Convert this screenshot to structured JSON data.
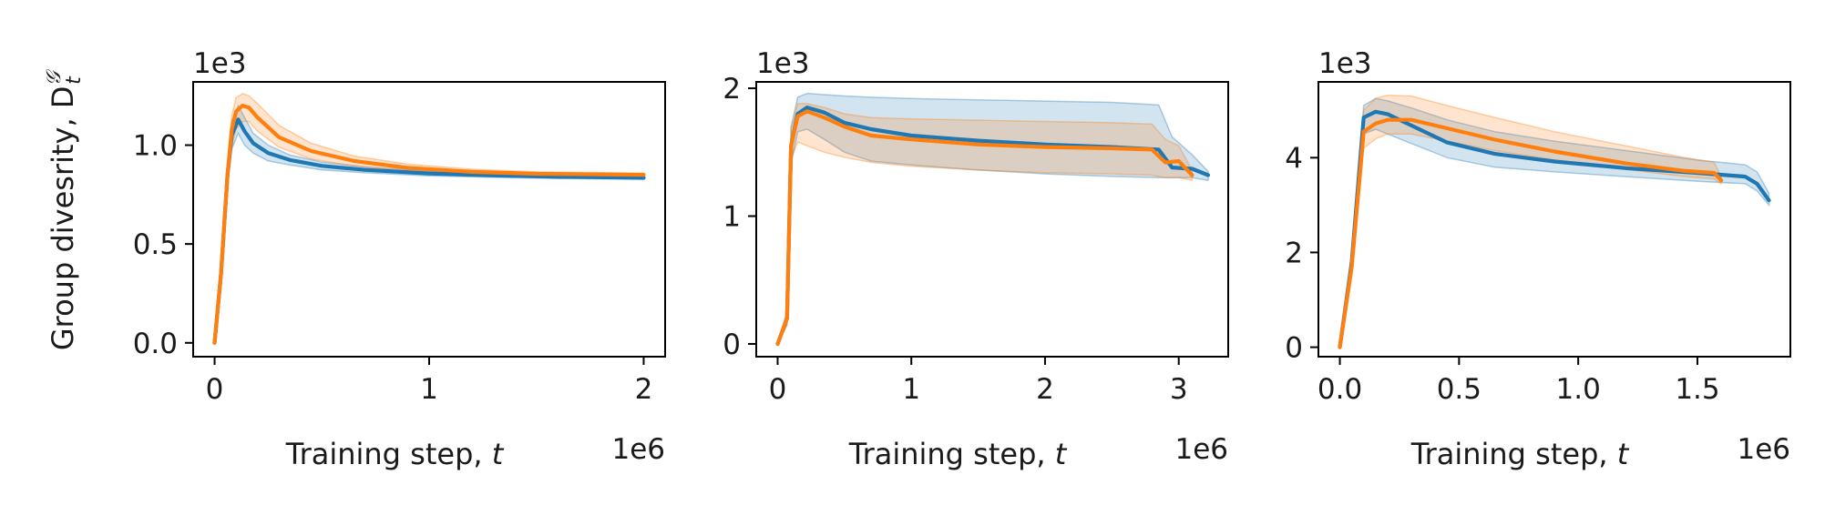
{
  "figure": {
    "ylabel": "Group divesrity, D",
    "ylabel_sup": "𝒢",
    "ylabel_sub": "t"
  },
  "colors": {
    "series_a": "#1f77b4",
    "series_b": "#ff7f0e"
  },
  "chart_data": [
    {
      "type": "line",
      "xlabel": "Training step, t",
      "x_multiplier": "1e6",
      "y_multiplier": "1e3",
      "xlim": [
        -0.1,
        2.1
      ],
      "ylim": [
        -0.07,
        1.32
      ],
      "xticks": [
        0,
        1,
        2
      ],
      "xtick_labels": [
        "0",
        "1",
        "2"
      ],
      "yticks": [
        0.0,
        0.5,
        1.0
      ],
      "ytick_labels": [
        "0.0",
        "0.5",
        "1.0"
      ],
      "grid": false,
      "series": [
        {
          "color": "#1f77b4",
          "x": [
            0,
            0.03,
            0.06,
            0.08,
            0.11,
            0.14,
            0.18,
            0.25,
            0.35,
            0.5,
            0.7,
            1.0,
            1.3,
            1.6,
            2.0
          ],
          "y": [
            0,
            0.35,
            0.85,
            1.05,
            1.13,
            1.07,
            1.01,
            0.96,
            0.925,
            0.895,
            0.875,
            0.857,
            0.847,
            0.84,
            0.835
          ],
          "lower": [
            0,
            0.3,
            0.8,
            0.98,
            1.06,
            1.0,
            0.96,
            0.92,
            0.9,
            0.875,
            0.86,
            0.845,
            0.837,
            0.831,
            0.827
          ],
          "upper": [
            0,
            0.4,
            0.9,
            1.12,
            1.2,
            1.14,
            1.06,
            1.0,
            0.95,
            0.915,
            0.89,
            0.869,
            0.857,
            0.849,
            0.843
          ]
        },
        {
          "color": "#ff7f0e",
          "x": [
            0,
            0.03,
            0.06,
            0.08,
            0.1,
            0.13,
            0.16,
            0.2,
            0.3,
            0.45,
            0.65,
            0.9,
            1.2,
            1.5,
            2.0
          ],
          "y": [
            0,
            0.35,
            0.85,
            1.08,
            1.17,
            1.2,
            1.19,
            1.14,
            1.04,
            0.97,
            0.92,
            0.885,
            0.865,
            0.855,
            0.85
          ],
          "lower": [
            0,
            0.3,
            0.8,
            1.0,
            1.08,
            1.12,
            1.12,
            1.07,
            0.99,
            0.93,
            0.895,
            0.866,
            0.852,
            0.845,
            0.841
          ],
          "upper": [
            0,
            0.4,
            0.9,
            1.15,
            1.24,
            1.26,
            1.25,
            1.21,
            1.1,
            1.01,
            0.945,
            0.904,
            0.878,
            0.865,
            0.859
          ]
        }
      ]
    },
    {
      "type": "line",
      "xlabel": "Training step, t",
      "x_multiplier": "1e6",
      "y_multiplier": "1e3",
      "xlim": [
        -0.16,
        3.37
      ],
      "ylim": [
        -0.1,
        2.05
      ],
      "xticks": [
        0,
        1,
        2,
        3
      ],
      "xtick_labels": [
        "0",
        "1",
        "2",
        "3"
      ],
      "yticks": [
        0,
        1,
        2
      ],
      "ytick_labels": [
        "0",
        "1",
        "2"
      ],
      "grid": false,
      "series": [
        {
          "color": "#1f77b4",
          "x": [
            0,
            0.07,
            0.1,
            0.15,
            0.22,
            0.35,
            0.5,
            0.7,
            1.0,
            1.5,
            2.0,
            2.5,
            2.85,
            2.95,
            3.1,
            3.22
          ],
          "y": [
            0,
            0.2,
            1.55,
            1.8,
            1.85,
            1.81,
            1.73,
            1.68,
            1.63,
            1.59,
            1.56,
            1.54,
            1.52,
            1.38,
            1.37,
            1.32
          ],
          "lower": [
            0,
            0.15,
            1.4,
            1.66,
            1.68,
            1.6,
            1.5,
            1.43,
            1.4,
            1.36,
            1.33,
            1.31,
            1.3,
            1.3,
            1.3,
            1.28
          ],
          "upper": [
            0,
            0.25,
            1.7,
            1.93,
            1.96,
            1.95,
            1.94,
            1.93,
            1.92,
            1.91,
            1.9,
            1.89,
            1.87,
            1.62,
            1.48,
            1.35
          ]
        },
        {
          "color": "#ff7f0e",
          "x": [
            0,
            0.07,
            0.1,
            0.15,
            0.22,
            0.35,
            0.5,
            0.7,
            1.0,
            1.5,
            2.0,
            2.5,
            2.8,
            2.9,
            3.0,
            3.1
          ],
          "y": [
            0,
            0.2,
            1.55,
            1.78,
            1.82,
            1.77,
            1.7,
            1.63,
            1.6,
            1.56,
            1.54,
            1.53,
            1.52,
            1.42,
            1.43,
            1.32
          ],
          "lower": [
            0,
            0.15,
            1.45,
            1.58,
            1.55,
            1.5,
            1.46,
            1.42,
            1.39,
            1.36,
            1.34,
            1.33,
            1.32,
            1.3,
            1.3,
            1.28
          ],
          "upper": [
            0,
            0.25,
            1.68,
            1.88,
            1.88,
            1.85,
            1.8,
            1.77,
            1.76,
            1.75,
            1.74,
            1.73,
            1.72,
            1.6,
            1.55,
            1.36
          ]
        }
      ]
    },
    {
      "type": "line",
      "xlabel": "Training step, t",
      "x_multiplier": "1e6",
      "y_multiplier": "1e3",
      "xlim": [
        -0.09,
        1.89
      ],
      "ylim": [
        -0.2,
        5.6
      ],
      "xticks": [
        0.0,
        0.5,
        1.0,
        1.5
      ],
      "xtick_labels": [
        "0.0",
        "0.5",
        "1.0",
        "1.5"
      ],
      "yticks": [
        0,
        2,
        4
      ],
      "ytick_labels": [
        "0",
        "2",
        "4"
      ],
      "grid": false,
      "series": [
        {
          "color": "#1f77b4",
          "x": [
            0,
            0.05,
            0.1,
            0.15,
            0.2,
            0.3,
            0.45,
            0.65,
            0.9,
            1.2,
            1.5,
            1.7,
            1.75,
            1.8
          ],
          "y": [
            0,
            1.8,
            4.85,
            4.97,
            4.92,
            4.68,
            4.32,
            4.08,
            3.92,
            3.78,
            3.68,
            3.6,
            3.45,
            3.1
          ],
          "lower": [
            0,
            1.6,
            4.5,
            4.6,
            4.5,
            4.3,
            4.0,
            3.8,
            3.7,
            3.6,
            3.5,
            3.45,
            3.3,
            3.0
          ],
          "upper": [
            0,
            2.0,
            5.1,
            5.25,
            5.2,
            5.05,
            4.8,
            4.55,
            4.35,
            4.15,
            3.95,
            3.85,
            3.7,
            3.25
          ]
        },
        {
          "color": "#ff7f0e",
          "x": [
            0,
            0.05,
            0.1,
            0.15,
            0.2,
            0.3,
            0.45,
            0.65,
            0.9,
            1.2,
            1.45,
            1.57,
            1.6
          ],
          "y": [
            0,
            1.7,
            4.55,
            4.72,
            4.8,
            4.8,
            4.62,
            4.38,
            4.13,
            3.88,
            3.72,
            3.68,
            3.52
          ],
          "lower": [
            0,
            1.5,
            4.2,
            4.4,
            4.5,
            4.5,
            4.35,
            4.15,
            3.95,
            3.75,
            3.6,
            3.55,
            3.45
          ],
          "upper": [
            0,
            1.9,
            5.0,
            5.25,
            5.32,
            5.3,
            5.1,
            4.85,
            4.55,
            4.25,
            4.0,
            3.9,
            3.6
          ]
        }
      ]
    }
  ]
}
